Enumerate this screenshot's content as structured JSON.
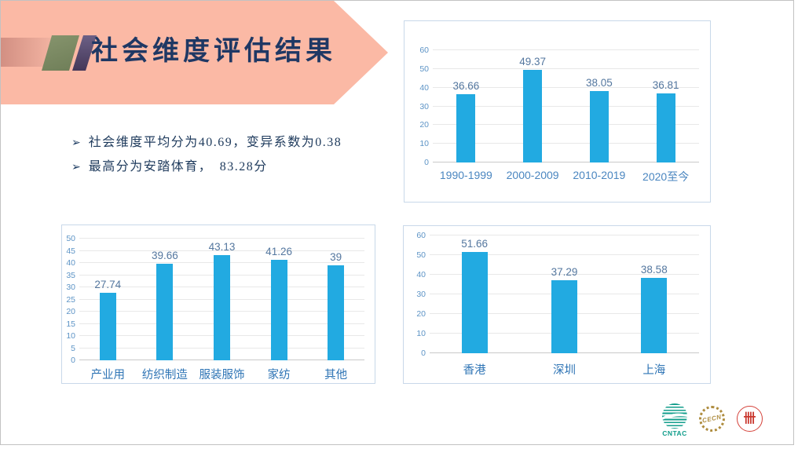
{
  "slide": {
    "title": "社会维度评估结果",
    "bullet_marker": "➢",
    "bullets": [
      "社会维度平均分为40.69，变异系数为0.38",
      "最高分为安踏体育，　83.28分"
    ]
  },
  "colors": {
    "banner_pink": "#FBB9A5",
    "accent_olive": "#7B8A63",
    "accent_purple": "#544768",
    "title_navy": "#1F3864",
    "bar_blue": "#22AAE1",
    "cntac_teal": "#0E9C8A",
    "seal_gold": "#AE8C3E",
    "seal_red": "#D5423A"
  },
  "logos": [
    {
      "name": "cntac-logo",
      "label": "CNTAC"
    },
    {
      "name": "gold-wreath-seal",
      "label": "CECN"
    },
    {
      "name": "red-university-seal",
      "label": "卌"
    }
  ],
  "chart_data": [
    {
      "type": "bar",
      "title": "",
      "xlabel": "",
      "ylabel": "",
      "categories": [
        "1990-1999",
        "2000-2009",
        "2010-2019",
        "2020至今"
      ],
      "values": [
        36.66,
        49.37,
        38.05,
        36.81
      ],
      "ylim": [
        0,
        60
      ],
      "ytick_step": 10,
      "grid": true,
      "legend": false,
      "bar_color": "#22AAE1"
    },
    {
      "type": "bar",
      "title": "",
      "xlabel": "",
      "ylabel": "",
      "categories": [
        "产业用",
        "纺织制造",
        "服装服饰",
        "家纺",
        "其他"
      ],
      "values": [
        27.74,
        39.66,
        43.13,
        41.26,
        39
      ],
      "ylim": [
        0,
        50
      ],
      "ytick_step": 5,
      "grid": true,
      "legend": false,
      "bar_color": "#22AAE1"
    },
    {
      "type": "bar",
      "title": "",
      "xlabel": "",
      "ylabel": "",
      "categories": [
        "香港",
        "深圳",
        "上海"
      ],
      "values": [
        51.66,
        37.29,
        38.58
      ],
      "ylim": [
        0,
        60
      ],
      "ytick_step": 10,
      "grid": true,
      "legend": false,
      "bar_color": "#22AAE1"
    }
  ]
}
